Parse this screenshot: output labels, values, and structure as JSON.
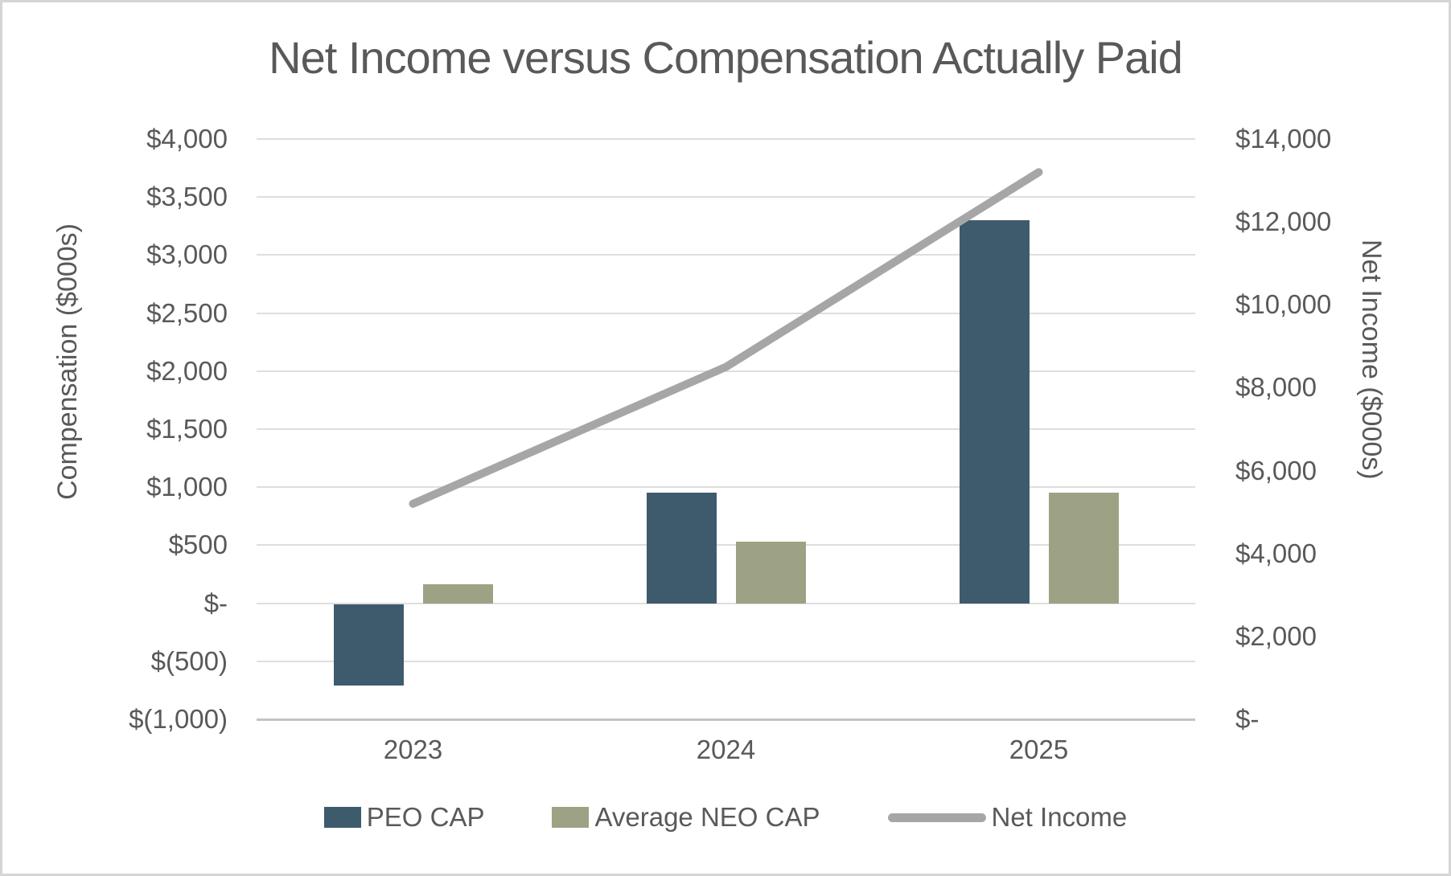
{
  "title": "Net Income versus Compensation Actually Paid",
  "left_axis": {
    "title": "Compensation ($000s)",
    "ticks": [
      "$4,000",
      "$3,500",
      "$3,000",
      "$2,500",
      "$2,000",
      "$1,500",
      "$1,000",
      "$500",
      "$-",
      "$(500)",
      "$(1,000)"
    ],
    "min": -1000,
    "max": 4000,
    "step": 500
  },
  "right_axis": {
    "title": "Net Income ($000s)",
    "ticks": [
      "$14,000",
      "$12,000",
      "$10,000",
      "$8,000",
      "$6,000",
      "$4,000",
      "$2,000",
      "$-"
    ],
    "min": 0,
    "max": 14000,
    "step": 2000
  },
  "x_axis": {
    "categories": [
      "2023",
      "2024",
      "2025"
    ]
  },
  "colors": {
    "peo_bar": "#3e5b6e",
    "neo_bar": "#9ea284",
    "net_income_line": "#a6a6a6",
    "gridline": "#dedede",
    "axis_line": "#c3c3c3",
    "text": "#595959",
    "frame_border": "#d5d5d5",
    "background": "#ffffff"
  },
  "chart_data": {
    "type": "combo",
    "title": "Net Income versus Compensation Actually Paid",
    "categories": [
      "2023",
      "2024",
      "2025"
    ],
    "series": [
      {
        "name": "PEO CAP",
        "type": "bar",
        "axis": "left",
        "color": "#3e5b6e",
        "values": [
          -700,
          950,
          3300
        ]
      },
      {
        "name": "Average NEO CAP",
        "type": "bar",
        "axis": "left",
        "color": "#9ea284",
        "values": [
          160,
          530,
          950
        ]
      },
      {
        "name": "Net Income",
        "type": "line",
        "axis": "right",
        "color": "#a6a6a6",
        "values": [
          5200,
          8500,
          13200
        ]
      }
    ],
    "left_ylabel": "Compensation ($000s)",
    "right_ylabel": "Net Income ($000s)",
    "left_ylim": [
      -1000,
      4000
    ],
    "right_ylim": [
      0,
      14000
    ],
    "grid": true,
    "legend_position": "bottom"
  }
}
